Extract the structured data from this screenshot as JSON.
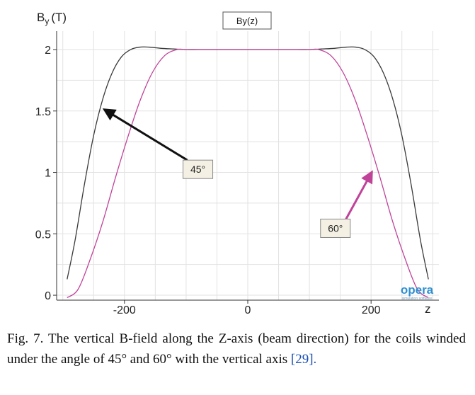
{
  "chart_data": {
    "type": "line",
    "title": "By(z)",
    "ylabel": "B",
    "ylabel_sub": "y",
    "ylabel_unit": "(T)",
    "xlabel": "z",
    "xlim": [
      -310,
      310
    ],
    "ylim": [
      -0.04,
      2.15
    ],
    "xticks": [
      -200,
      0,
      200
    ],
    "xtick_labels": [
      "-200",
      "0",
      "200"
    ],
    "yticks": [
      0,
      0.5,
      1,
      1.5,
      2
    ],
    "ytick_labels": [
      "0",
      "0.5",
      "1",
      "1.5",
      "2"
    ],
    "grid": true,
    "series": [
      {
        "name": "45°",
        "color": "#3a3a3a",
        "x": [
          -293,
          -280,
          -265,
          -250,
          -235,
          -220,
          -205,
          -190,
          -175,
          -160,
          -140,
          -120,
          -100,
          -80,
          -50,
          0,
          50,
          80,
          100,
          120,
          140,
          160,
          175,
          190,
          205,
          220,
          235,
          250,
          265,
          280,
          293
        ],
        "y": [
          0.13,
          0.45,
          0.9,
          1.3,
          1.6,
          1.81,
          1.94,
          2.0,
          2.02,
          2.02,
          2.01,
          2.005,
          2.0,
          2.0,
          2.0,
          2.0,
          2.0,
          2.0,
          2.0,
          2.005,
          2.01,
          2.02,
          2.02,
          2.0,
          1.94,
          1.81,
          1.6,
          1.3,
          0.9,
          0.45,
          0.13
        ]
      },
      {
        "name": "60°",
        "color": "#c0439a",
        "x": [
          -293,
          -275,
          -255,
          -235,
          -215,
          -195,
          -175,
          -155,
          -135,
          -115,
          -100,
          -80,
          -50,
          0,
          50,
          80,
          100,
          115,
          135,
          155,
          175,
          195,
          215,
          235,
          255,
          275,
          293
        ],
        "y": [
          -0.02,
          0.05,
          0.3,
          0.6,
          0.95,
          1.28,
          1.58,
          1.81,
          1.95,
          2.0,
          2.0,
          2.0,
          2.0,
          2.0,
          2.0,
          2.0,
          2.0,
          2.0,
          1.95,
          1.81,
          1.58,
          1.28,
          0.95,
          0.6,
          0.3,
          0.05,
          -0.02
        ]
      }
    ],
    "annotations": [
      {
        "text": "45°",
        "box_x": -105,
        "box_y": 1.1,
        "arrow_to_x": -232,
        "arrow_to_y": 1.51,
        "color": "#111111"
      },
      {
        "text": "60°",
        "box_x": 118,
        "box_y": 0.62,
        "arrow_to_x": 201,
        "arrow_to_y": 1.0,
        "color": "#c0439a"
      }
    ]
  },
  "logo": {
    "text": "opera",
    "subtext": "simulation software"
  },
  "caption": {
    "text": "Fig. 7.  The vertical B-field along the Z-axis (beam direction) for the coils winded under the angle of 45° and 60° with the vertical axis",
    "ref": "[29]."
  }
}
